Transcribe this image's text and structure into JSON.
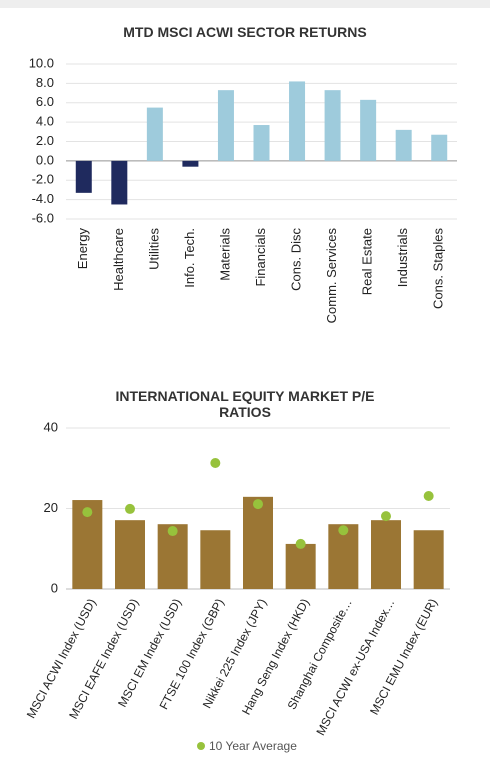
{
  "chart_data": [
    {
      "type": "bar",
      "title": "MTD MSCI ACWI SECTOR RETURNS",
      "categories": [
        "Energy",
        "Healthcare",
        "Utilities",
        "Info. Tech.",
        "Materials",
        "Financials",
        "Cons. Disc",
        "Comm. Services",
        "Real Estate",
        "Industrials",
        "Cons. Staples"
      ],
      "values": [
        -3.3,
        -4.5,
        5.5,
        -0.6,
        7.3,
        3.7,
        8.2,
        7.3,
        6.3,
        3.2,
        2.7
      ],
      "positive_color": "#9ecbdc",
      "negative_color": "#1f2a5e",
      "ylim": [
        -6,
        10
      ],
      "yticks": [
        {
          "value": -6,
          "label": "-6.0"
        },
        {
          "value": -4,
          "label": "-4.0"
        },
        {
          "value": -2,
          "label": "-2.0"
        },
        {
          "value": 0,
          "label": "0.0"
        },
        {
          "value": 2,
          "label": "2.0"
        },
        {
          "value": 4,
          "label": "4.0"
        },
        {
          "value": 6,
          "label": "6.0"
        },
        {
          "value": 8,
          "label": "8.0"
        },
        {
          "value": 10,
          "label": "10.0"
        }
      ],
      "grid": true
    },
    {
      "type": "bar",
      "title": "INTERNATIONAL EQUITY MARKET P/E RATIOS",
      "categories": [
        "MSCI ACWI Index (USD)",
        "MSCI EAFE Index (USD)",
        "MSCI EM Index (USD)",
        "FTSE 100 Index (GBP)",
        "Nikkei 225 Index (JPY)",
        "Hang Seng Index (HKD)",
        "Shanghai Composite…",
        "MSCI ACWI ex-USA Index…",
        "MSCI EMU Index (EUR)"
      ],
      "series": [
        {
          "color": "#9b7634",
          "values": [
            22.1,
            17.1,
            16.1,
            14.6,
            22.9,
            11.2,
            16.1,
            17.1,
            14.6
          ]
        },
        {
          "name": "10 Year Average",
          "type": "scatter",
          "color": "#97c23c",
          "values": [
            19.1,
            19.9,
            14.4,
            31.3,
            21.1,
            11.2,
            14.6,
            18.1,
            23.1
          ]
        }
      ],
      "ylim": [
        0,
        40
      ],
      "yticks": [
        0,
        20,
        40
      ],
      "grid": true,
      "legend": "bottom"
    }
  ]
}
